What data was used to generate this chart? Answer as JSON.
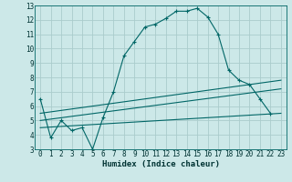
{
  "xlabel": "Humidex (Indice chaleur)",
  "bg_color": "#cce8e8",
  "grid_color": "#aacccc",
  "line_color": "#006666",
  "xlim": [
    -0.5,
    23.5
  ],
  "ylim": [
    3,
    13
  ],
  "xticks": [
    0,
    1,
    2,
    3,
    4,
    5,
    6,
    7,
    8,
    9,
    10,
    11,
    12,
    13,
    14,
    15,
    16,
    17,
    18,
    19,
    20,
    21,
    22,
    23
  ],
  "yticks": [
    3,
    4,
    5,
    6,
    7,
    8,
    9,
    10,
    11,
    12,
    13
  ],
  "main_x": [
    0,
    1,
    2,
    3,
    4,
    5,
    6,
    7,
    8,
    9,
    10,
    11,
    12,
    13,
    14,
    15,
    16,
    17,
    18,
    19,
    20,
    21,
    22
  ],
  "main_y": [
    6.5,
    3.8,
    5.0,
    4.3,
    4.5,
    3.0,
    5.2,
    7.0,
    9.5,
    10.5,
    11.5,
    11.7,
    12.1,
    12.6,
    12.6,
    12.8,
    12.2,
    11.0,
    8.5,
    7.8,
    7.5,
    6.5,
    5.5
  ],
  "line2_x": [
    0,
    23
  ],
  "line2_y": [
    5.5,
    7.8
  ],
  "line3_x": [
    0,
    23
  ],
  "line3_y": [
    5.0,
    7.2
  ],
  "line4_x": [
    0,
    23
  ],
  "line4_y": [
    4.5,
    5.5
  ]
}
